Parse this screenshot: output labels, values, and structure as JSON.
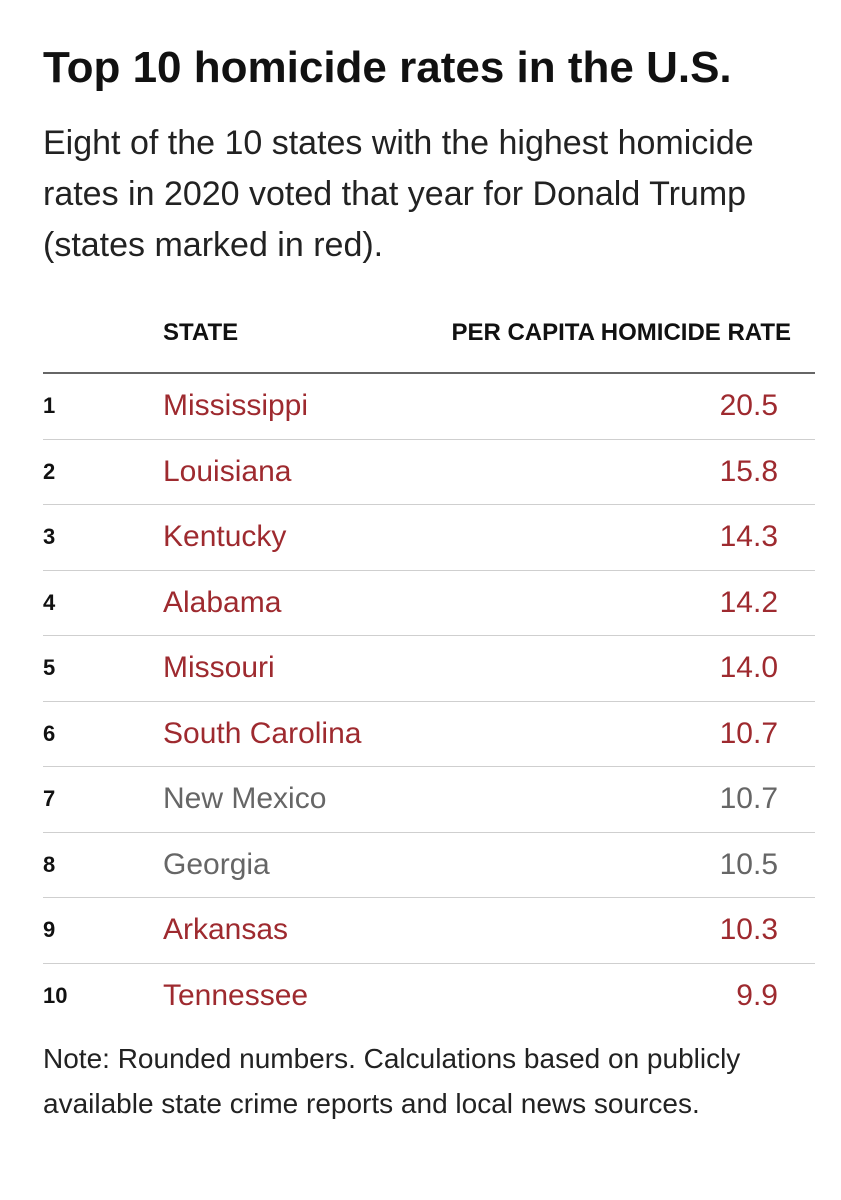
{
  "chart_data": {
    "type": "table",
    "title": "Top 10 homicide rates in the U.S.",
    "subtitle": "Eight of the 10 states with the highest homicide rates in 2020 voted that year for Donald Trump (states marked in red).",
    "columns": [
      "STATE",
      "PER CAPITA HOMICIDE RATE"
    ],
    "rows": [
      {
        "rank": "1",
        "state": "Mississippi",
        "rate": "20.5",
        "voted_trump": true
      },
      {
        "rank": "2",
        "state": "Louisiana",
        "rate": "15.8",
        "voted_trump": true
      },
      {
        "rank": "3",
        "state": "Kentucky",
        "rate": "14.3",
        "voted_trump": true
      },
      {
        "rank": "4",
        "state": "Alabama",
        "rate": "14.2",
        "voted_trump": true
      },
      {
        "rank": "5",
        "state": "Missouri",
        "rate": "14.0",
        "voted_trump": true
      },
      {
        "rank": "6",
        "state": "South Carolina",
        "rate": "10.7",
        "voted_trump": true
      },
      {
        "rank": "7",
        "state": "New Mexico",
        "rate": "10.7",
        "voted_trump": false
      },
      {
        "rank": "8",
        "state": "Georgia",
        "rate": "10.5",
        "voted_trump": false
      },
      {
        "rank": "9",
        "state": "Arkansas",
        "rate": "10.3",
        "voted_trump": true
      },
      {
        "rank": "10",
        "state": "Tennessee",
        "rate": "9.9",
        "voted_trump": true
      }
    ],
    "note": "Note: Rounded numbers. Calculations based on publicly available state crime reports and local news sources."
  },
  "colors": {
    "trump_state": "#9e2a2f",
    "other_state": "#666666",
    "text": "#222222"
  }
}
